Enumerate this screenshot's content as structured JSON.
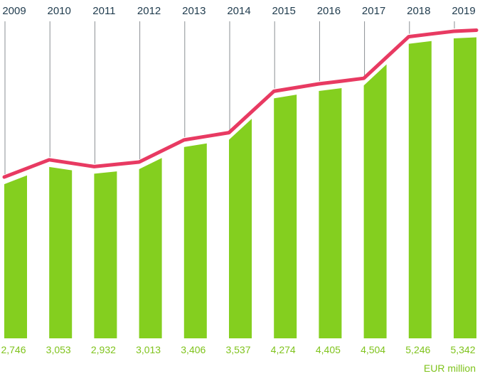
{
  "chart_data": {
    "type": "bar",
    "categories": [
      "2009",
      "2010",
      "2011",
      "2012",
      "2013",
      "2014",
      "2015",
      "2016",
      "2017",
      "2018",
      "2019"
    ],
    "values": [
      2746,
      3053,
      2932,
      3013,
      3406,
      3537,
      4274,
      4405,
      4504,
      5246,
      5342
    ],
    "value_labels": [
      "2,746",
      "3,053",
      "2,932",
      "3,013",
      "3,406",
      "3,537",
      "4,274",
      "4,405",
      "4,504",
      "5,246",
      "5,342"
    ],
    "unit": "EUR million",
    "trend_line": true,
    "colors": {
      "bar": "#84cf1f",
      "line": "#e83a62",
      "year_text": "#1f3b4d",
      "value_text": "#7fc31c",
      "guide": "#8a8f93"
    }
  }
}
